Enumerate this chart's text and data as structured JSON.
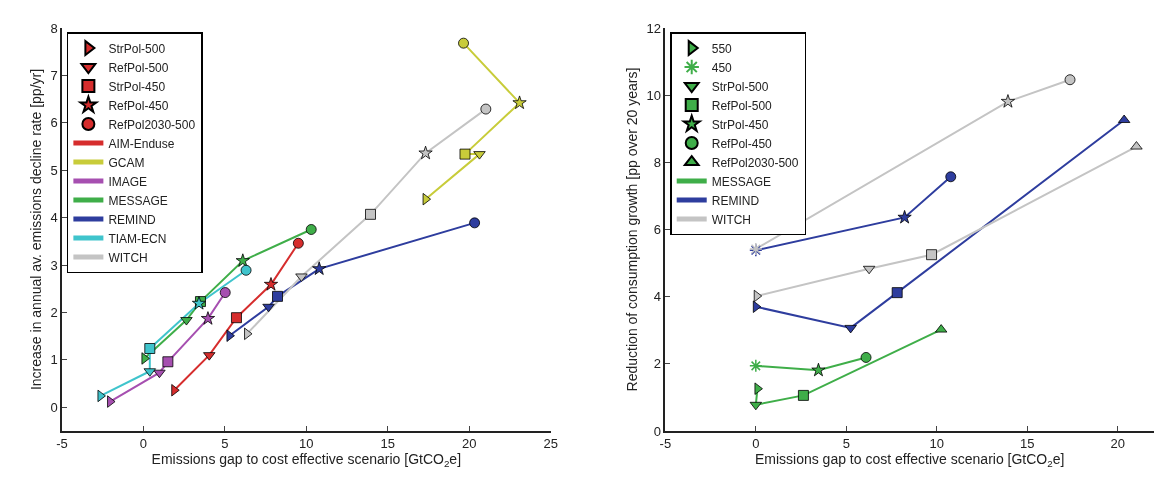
{
  "chart_data": [
    {
      "type": "line",
      "xlabel": "Emissions gap to cost effective scenario [GtCO$_{2}$e]",
      "ylabel": "Increase in annual av. emissions decline rate [pp/yr]",
      "xlim": [
        -5,
        25
      ],
      "xticks": [
        -5,
        0,
        5,
        10,
        15,
        20,
        25
      ],
      "ylim": [
        -0.5,
        8
      ],
      "yticks": [
        0,
        1,
        2,
        3,
        4,
        5,
        6,
        7,
        8
      ],
      "legend": "top left",
      "series": [
        {
          "name": "StrPol-500",
          "type": "scatter",
          "marker": "triangle-right",
          "color": "#000000",
          "colors": [
            "#d62d2d",
            "#c8cc3a",
            "#a64fb0",
            "#3fae49",
            "#2e3d9e",
            "#3fc4cc",
            "#c4c4c4"
          ],
          "x": [
            1.89,
            17.32,
            -2.05,
            0.06,
            5.28,
            -2.64,
            6.36
          ],
          "values": [
            0.36,
            4.39,
            0.12,
            1.03,
            1.51,
            0.24,
            1.55
          ]
        },
        {
          "name": "RefPol-500",
          "type": "scatter",
          "marker": "triangle-down",
          "color": "#000000",
          "colors": [
            "#d62d2d",
            "#c8cc3a",
            "#a64fb0",
            "#3fae49",
            "#2e3d9e",
            "#3fc4cc",
            "#c4c4c4"
          ],
          "x": [
            4.04,
            20.63,
            0.98,
            2.64,
            7.68,
            0.39,
            9.7
          ],
          "values": [
            1.1,
            5.34,
            0.73,
            1.84,
            2.12,
            0.76,
            2.76
          ]
        },
        {
          "name": "StrPol-450",
          "type": "scatter",
          "marker": "square",
          "color": "#000000",
          "colors": [
            "#d62d2d",
            "#c8cc3a",
            "#a64fb0",
            "#3fae49",
            "#2e3d9e",
            "#3fc4cc",
            "#c4c4c4"
          ],
          "x": [
            5.71,
            19.74,
            1.5,
            3.5,
            8.23,
            0.39,
            13.94
          ],
          "values": [
            1.89,
            5.34,
            0.96,
            2.23,
            2.34,
            1.24,
            4.07
          ]
        },
        {
          "name": "RefPol-450",
          "type": "scatter",
          "marker": "star",
          "color": "#000000",
          "colors": [
            "#d62d2d",
            "#c8cc3a",
            "#a64fb0",
            "#3fae49",
            "#2e3d9e",
            "#3fc4cc",
            "#c4c4c4"
          ],
          "x": [
            7.83,
            23.09,
            3.96,
            6.1,
            10.79,
            3.41,
            17.32
          ],
          "values": [
            2.59,
            6.42,
            1.87,
            3.09,
            2.92,
            2.19,
            5.36
          ]
        },
        {
          "name": "RefPol2030-500",
          "type": "scatter",
          "marker": "circle",
          "color": "#000000",
          "colors": [
            "#d62d2d",
            "#c8cc3a",
            "#a64fb0",
            "#3fae49",
            "#2e3d9e",
            "#3fc4cc",
            "#c4c4c4"
          ],
          "x": [
            9.51,
            19.65,
            5.02,
            10.3,
            20.33,
            6.3,
            21.02
          ],
          "values": [
            3.46,
            7.68,
            2.42,
            3.75,
            3.89,
            2.89,
            6.29
          ]
        },
        {
          "name": "AIM-Enduse",
          "color": "#d62d2d",
          "x": [
            1.89,
            4.04,
            5.71,
            7.83,
            9.51
          ],
          "values": [
            0.36,
            1.1,
            1.89,
            2.59,
            3.46
          ]
        },
        {
          "name": "GCAM",
          "color": "#c8cc3a",
          "x": [
            17.32,
            20.63,
            19.74,
            23.09,
            19.65
          ],
          "values": [
            4.39,
            5.34,
            5.34,
            6.42,
            7.68
          ]
        },
        {
          "name": "IMAGE",
          "color": "#a64fb0",
          "x": [
            -2.05,
            0.98,
            1.5,
            3.96,
            5.02
          ],
          "values": [
            0.12,
            0.73,
            0.96,
            1.87,
            2.42
          ]
        },
        {
          "name": "MESSAGE",
          "color": "#3fae49",
          "x": [
            0.06,
            2.64,
            3.5,
            6.1,
            10.3
          ],
          "values": [
            1.03,
            1.84,
            2.23,
            3.09,
            3.75
          ]
        },
        {
          "name": "REMIND",
          "color": "#2e3d9e",
          "x": [
            5.28,
            7.68,
            8.23,
            10.79,
            20.33
          ],
          "values": [
            1.51,
            2.12,
            2.34,
            2.92,
            3.89
          ]
        },
        {
          "name": "TIAM-ECN",
          "color": "#3fc4cc",
          "x": [
            -2.64,
            0.39,
            0.39,
            3.41,
            6.3
          ],
          "values": [
            0.24,
            0.76,
            1.24,
            2.19,
            2.89
          ]
        },
        {
          "name": "WITCH",
          "color": "#c4c4c4",
          "x": [
            6.36,
            9.7,
            13.94,
            17.32,
            21.02
          ],
          "values": [
            1.55,
            2.76,
            4.07,
            5.36,
            6.29
          ]
        }
      ]
    },
    {
      "type": "line",
      "xlabel": "Emissions gap to cost effective scenario [GtCO$_{2}$e]",
      "ylabel": "Reduction of consumption growth [pp over 20 years]",
      "xlim": [
        -5,
        22
      ],
      "xticks": [
        -5,
        0,
        5,
        10,
        15,
        20
      ],
      "ylim": [
        0,
        12
      ],
      "yticks": [
        0,
        2,
        4,
        6,
        8,
        10,
        12
      ],
      "legend": "top left",
      "series": [
        {
          "name": "550",
          "type": "scatter",
          "marker": "triangle-right",
          "color": "#000000",
          "colors": [
            "#3fae49",
            "#2e3d9e",
            "#c4c4c4"
          ],
          "x": [
            0.09,
            0,
            0.05
          ],
          "values": [
            1.26,
            3.7,
            4.02
          ]
        },
        {
          "name": "450",
          "type": "scatter",
          "marker": "cross",
          "color": "#aaaaaa",
          "colors": [
            "#3fae49",
            "#2e3d9e",
            "#c4c4c4"
          ],
          "x": [
            0,
            0,
            0
          ],
          "values": [
            1.94,
            5.38,
            5.42
          ]
        },
        {
          "name": "StrPol-500",
          "type": "scatter",
          "marker": "triangle-down",
          "color": "#000000",
          "colors": [
            "#3fae49",
            "#2e3d9e",
            "#c4c4c4"
          ],
          "x": [
            0,
            5.24,
            6.26
          ],
          "values": [
            0.78,
            3.07,
            4.83
          ]
        },
        {
          "name": "RefPol-500",
          "type": "scatter",
          "marker": "square",
          "color": "#000000",
          "colors": [
            "#3fae49",
            "#2e3d9e",
            "#c4c4c4"
          ],
          "x": [
            2.63,
            7.81,
            9.71
          ],
          "values": [
            1.06,
            4.12,
            5.25
          ]
        },
        {
          "name": "StrPol-450",
          "type": "scatter",
          "marker": "star",
          "color": "#000000",
          "colors": [
            "#3fae49",
            "#2e3d9e",
            "#c4c4c4"
          ],
          "x": [
            3.46,
            8.22,
            13.93
          ],
          "values": [
            1.81,
            6.36,
            9.81
          ]
        },
        {
          "name": "RefPol-450",
          "type": "scatter",
          "marker": "circle",
          "color": "#000000",
          "colors": [
            "#3fae49",
            "#2e3d9e",
            "#c4c4c4"
          ],
          "x": [
            6.09,
            10.77,
            17.36
          ],
          "values": [
            2.19,
            7.57,
            10.46
          ]
        },
        {
          "name": "RefPol2030-500",
          "type": "scatter",
          "marker": "triangle-up",
          "color": "#000000",
          "colors": [
            "#3fae49",
            "#2e3d9e",
            "#c4c4c4"
          ],
          "x": [
            10.24,
            20.35,
            21.03
          ],
          "values": [
            3.02,
            9.26,
            8.47
          ]
        },
        {
          "name": "MESSAGE",
          "color": "#3fae49",
          "x": [
            0,
            3.46,
            6.09,
            null,
            0.09,
            0,
            2.63,
            10.24
          ],
          "values": [
            1.94,
            1.81,
            2.19,
            null,
            1.26,
            0.78,
            1.06,
            3.02
          ]
        },
        {
          "name": "REMIND",
          "color": "#2e3d9e",
          "x": [
            0,
            8.22,
            10.77,
            null,
            0,
            5.24,
            7.81,
            20.35
          ],
          "values": [
            5.38,
            6.36,
            7.57,
            null,
            3.7,
            3.07,
            4.12,
            9.26
          ]
        },
        {
          "name": "WITCH",
          "color": "#c4c4c4",
          "x": [
            0,
            13.93,
            17.36,
            null,
            0.05,
            6.26,
            9.71,
            21.03
          ],
          "values": [
            5.42,
            9.81,
            10.46,
            null,
            4.02,
            4.83,
            5.25,
            8.47
          ]
        }
      ]
    }
  ]
}
